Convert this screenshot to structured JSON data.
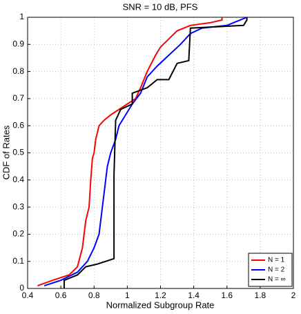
{
  "chart_data": {
    "type": "line",
    "title": "SNR = 10 dB, PFS",
    "x_label": "Normalized Subgroup Rate",
    "y_label": "CDF of Rates",
    "xlim": [
      0.4,
      2
    ],
    "ylim": [
      0,
      1
    ],
    "xticks": [
      0.4,
      0.6,
      0.8,
      1,
      1.2,
      1.4,
      1.6,
      1.8,
      2
    ],
    "yticks": [
      0,
      0.1,
      0.2,
      0.3,
      0.4,
      0.5,
      0.6,
      0.7,
      0.8,
      0.9,
      1
    ],
    "grid": true,
    "legend_position": "lower right",
    "series": [
      {
        "name": "N = 1",
        "color": "#ff0000",
        "x": [
          0.46,
          0.55,
          0.65,
          0.7,
          0.73,
          0.75,
          0.77,
          0.78,
          0.79,
          0.8,
          0.81,
          0.83,
          0.86,
          0.9,
          0.95,
          1.0,
          1.05,
          1.08,
          1.12,
          1.17,
          1.2,
          1.25,
          1.3,
          1.38,
          1.5,
          1.57,
          1.57
        ],
        "values": [
          0.01,
          0.03,
          0.05,
          0.08,
          0.15,
          0.25,
          0.3,
          0.4,
          0.48,
          0.5,
          0.55,
          0.6,
          0.62,
          0.64,
          0.66,
          0.68,
          0.7,
          0.74,
          0.8,
          0.86,
          0.89,
          0.92,
          0.95,
          0.97,
          0.98,
          0.99,
          1.0
        ]
      },
      {
        "name": "N = 2",
        "color": "#0000ff",
        "x": [
          0.5,
          0.6,
          0.7,
          0.76,
          0.8,
          0.83,
          0.85,
          0.87,
          0.88,
          0.9,
          0.93,
          0.95,
          0.98,
          1.03,
          1.08,
          1.12,
          1.18,
          1.25,
          1.32,
          1.38,
          1.45,
          1.6,
          1.68,
          1.72
        ],
        "values": [
          0.01,
          0.03,
          0.06,
          0.1,
          0.15,
          0.2,
          0.3,
          0.4,
          0.45,
          0.5,
          0.55,
          0.6,
          0.63,
          0.68,
          0.72,
          0.78,
          0.82,
          0.86,
          0.9,
          0.94,
          0.96,
          0.97,
          0.99,
          1.0
        ]
      },
      {
        "name": "N = ∞",
        "color": "#000000",
        "x": [
          0.62,
          0.62,
          0.7,
          0.75,
          0.82,
          0.92,
          0.92,
          0.93,
          0.96,
          1.03,
          1.03,
          1.12,
          1.18,
          1.25,
          1.3,
          1.37,
          1.38,
          1.7,
          1.72,
          1.72
        ],
        "values": [
          0.0,
          0.03,
          0.05,
          0.08,
          0.09,
          0.11,
          0.42,
          0.62,
          0.66,
          0.68,
          0.72,
          0.74,
          0.77,
          0.77,
          0.83,
          0.84,
          0.96,
          0.97,
          0.99,
          1.0
        ]
      }
    ]
  }
}
